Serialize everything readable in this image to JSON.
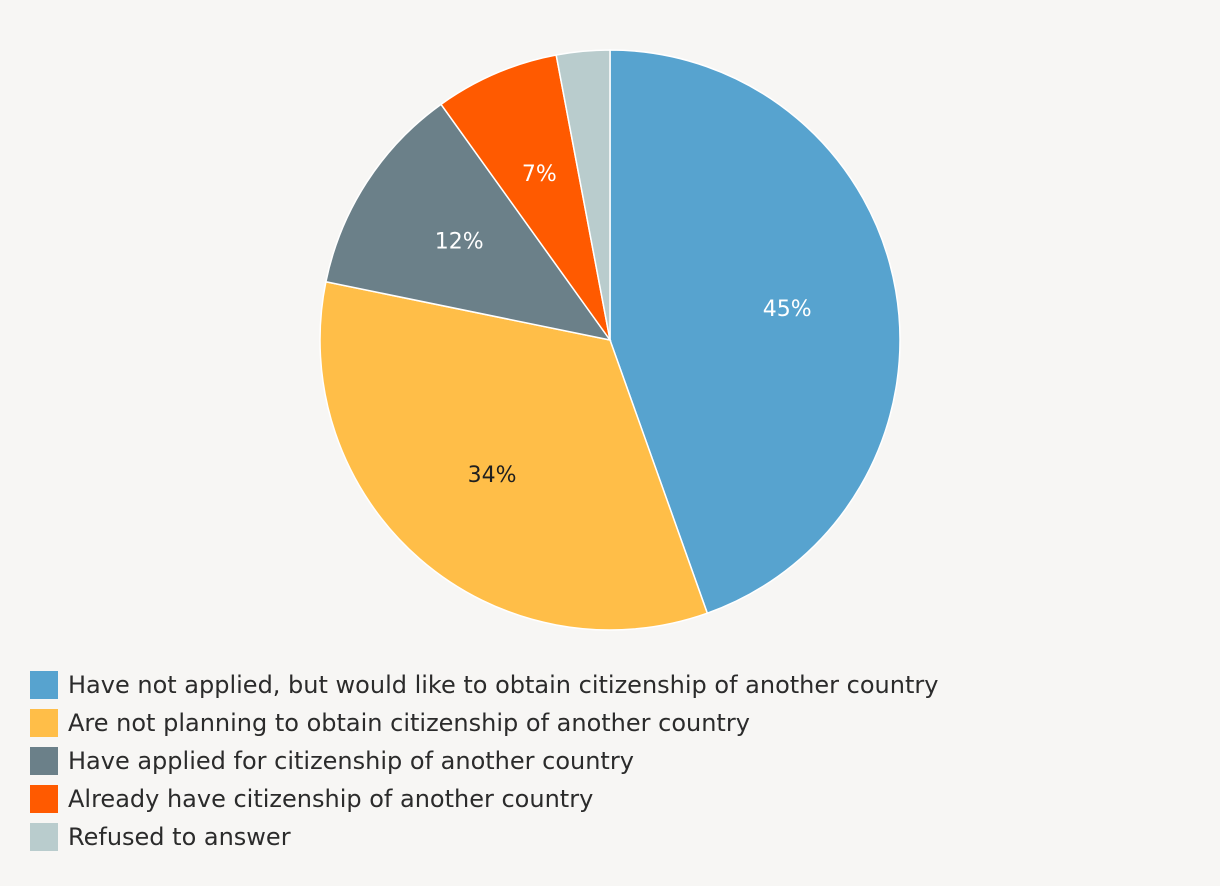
{
  "chart_data": {
    "type": "pie",
    "slices": [
      {
        "label": "Have not applied, but would like to obtain citizenship of another country",
        "value": 45,
        "data_label": "45%",
        "color": "#57a3cf",
        "label_color": "#ffffff"
      },
      {
        "label": "Are not planning to obtain citizenship of another country",
        "value": 34,
        "data_label": "34%",
        "color": "#ffbe48",
        "label_color": "#1f1f1f"
      },
      {
        "label": "Have applied for citizenship of another country",
        "value": 12,
        "data_label": "12%",
        "color": "#6b8089",
        "label_color": "#ffffff"
      },
      {
        "label": "Already have citizenship of another country",
        "value": 7,
        "data_label": "7%",
        "color": "#ff5a00",
        "label_color": "#ffffff"
      },
      {
        "label": "Refused to answer",
        "value": 3,
        "data_label": "",
        "color": "#b9cccd",
        "label_color": "#ffffff"
      }
    ],
    "legend_position": "bottom-left",
    "start_angle": "12 o'clock",
    "direction": "clockwise"
  }
}
